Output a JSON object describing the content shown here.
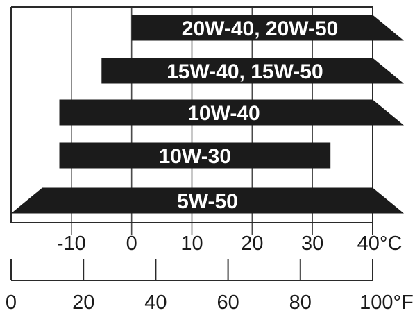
{
  "chart_data": {
    "type": "bar",
    "orientation": "horizontal-range",
    "celsius_axis": {
      "range": [
        -20,
        40
      ],
      "ticks": [
        -10,
        0,
        10,
        20,
        30,
        40
      ],
      "tick_labels": [
        "-10",
        "0",
        "10",
        "20",
        "30",
        "40°C"
      ]
    },
    "fahrenheit_axis": {
      "range": [
        0,
        100
      ],
      "ticks": [
        0,
        20,
        40,
        60,
        80,
        100
      ],
      "tick_labels": [
        "0",
        "20",
        "40",
        "60",
        "80",
        "100°F"
      ]
    },
    "grid": true,
    "bars": [
      {
        "label": "20W-40, 20W-50",
        "start": 0,
        "end": 40,
        "start_arrow": false,
        "end_arrow": true
      },
      {
        "label": "15W-40, 15W-50",
        "start": -5,
        "end": 40,
        "start_arrow": false,
        "end_arrow": true
      },
      {
        "label": "10W-40",
        "start": -12,
        "end": 40,
        "start_arrow": false,
        "end_arrow": true
      },
      {
        "label": "10W-30",
        "start": -12,
        "end": 33,
        "start_arrow": false,
        "end_arrow": false
      },
      {
        "label": "5W-50",
        "start": -20,
        "end": 40,
        "start_arrow": true,
        "end_arrow": true
      }
    ],
    "colors": {
      "bar": "#1b1b1b",
      "bar_text": "#ffffff",
      "frame": "#2a2a2a",
      "grid": "#4a4a4a",
      "text": "#1a1a1a"
    }
  }
}
